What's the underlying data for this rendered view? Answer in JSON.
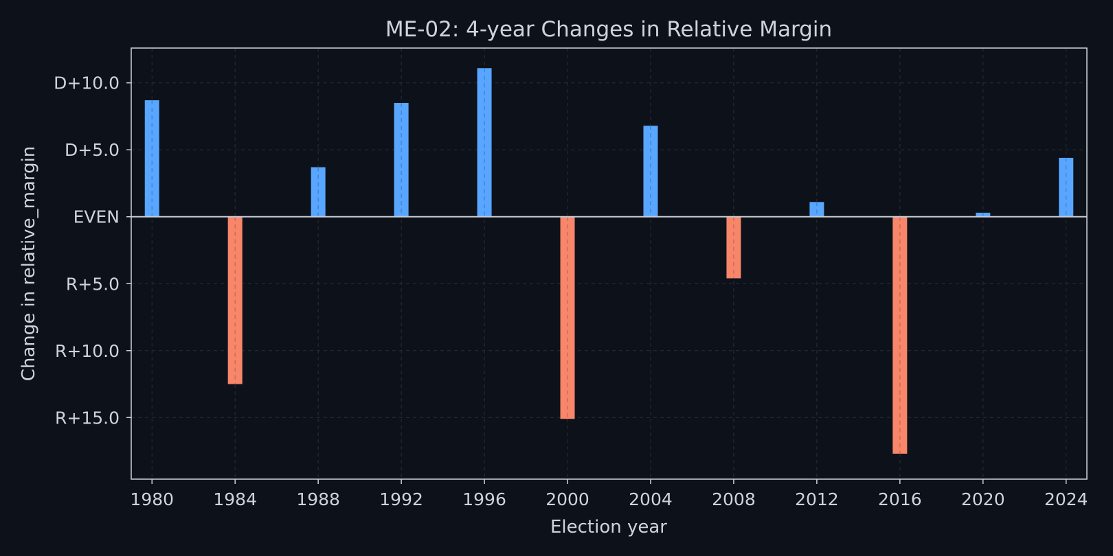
{
  "chart_data": {
    "type": "bar",
    "title": "ME-02: 4-year Changes in Relative Margin",
    "xlabel": "Election year",
    "ylabel": "Change in relative_margin",
    "categories": [
      "1980",
      "1984",
      "1988",
      "1992",
      "1996",
      "2000",
      "2004",
      "2008",
      "2012",
      "2016",
      "2020",
      "2024"
    ],
    "values": [
      8.7,
      -12.5,
      3.7,
      8.5,
      11.1,
      -15.1,
      6.8,
      -4.6,
      1.1,
      -17.7,
      0.3,
      4.4
    ],
    "x_ticks": [
      "1980",
      "1984",
      "1988",
      "1992",
      "1996",
      "2000",
      "2004",
      "2008",
      "2012",
      "2016",
      "2020",
      "2024"
    ],
    "y_ticks": [
      {
        "value": 10,
        "label": "D+10.0"
      },
      {
        "value": 5,
        "label": "D+5.0"
      },
      {
        "value": 0,
        "label": "EVEN"
      },
      {
        "value": -5,
        "label": "R+5.0"
      },
      {
        "value": -10,
        "label": "R+10.0"
      },
      {
        "value": -15,
        "label": "R+15.0"
      }
    ],
    "ylim": [
      -19.6,
      12.6
    ],
    "xlim": [
      1979,
      2025
    ],
    "grid": true,
    "colors": {
      "positive": "#58a6ff",
      "negative": "#f7866a",
      "positive_line": "#3f7fc6",
      "negative_line": "#c96550",
      "background": "#0d111a",
      "zero_line": "#c8ccd4",
      "axis_frame": "#d0d4da"
    }
  }
}
